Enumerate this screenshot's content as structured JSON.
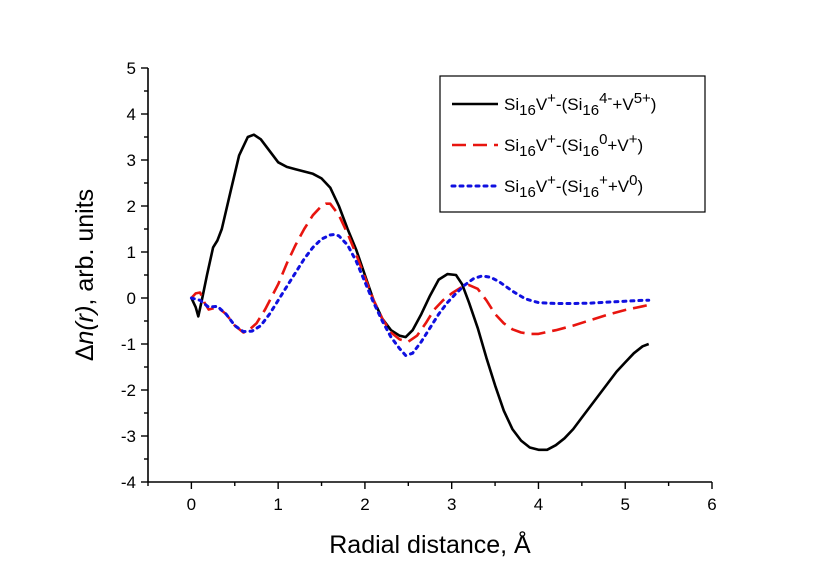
{
  "chart_data": {
    "type": "line",
    "title": "",
    "xlabel": "Radial distance, Å",
    "ylabel": {
      "prefix": "Δ",
      "italic": "n(r)",
      "suffix": ", arb. units"
    },
    "xlim": [
      -0.5,
      6
    ],
    "ylim": [
      -4,
      5
    ],
    "xticks": [
      0,
      1,
      2,
      3,
      4,
      5,
      6
    ],
    "yticks": [
      -4,
      -3,
      -2,
      -1,
      0,
      1,
      2,
      3,
      4,
      5
    ],
    "grid": false,
    "legend_position": "top-right",
    "series": [
      {
        "name": "Si16V+-(Si16^4-+V^5+)",
        "legend": [
          {
            "t": "Si"
          },
          {
            "t": "16",
            "s": "sub"
          },
          {
            "t": "V"
          },
          {
            "t": "+",
            "s": "sup"
          },
          {
            "t": "-(Si"
          },
          {
            "t": "16",
            "s": "sub"
          },
          {
            "t": "4-",
            "s": "sup"
          },
          {
            "t": "+V"
          },
          {
            "t": "5+",
            "s": "sup"
          },
          {
            "t": ")"
          }
        ],
        "color": "#000000",
        "style": "solid",
        "x": [
          0,
          0.05,
          0.08,
          0.12,
          0.18,
          0.25,
          0.3,
          0.35,
          0.45,
          0.55,
          0.65,
          0.72,
          0.8,
          0.9,
          1.0,
          1.1,
          1.2,
          1.3,
          1.4,
          1.5,
          1.6,
          1.7,
          1.8,
          1.9,
          2.0,
          2.1,
          2.2,
          2.3,
          2.4,
          2.47,
          2.55,
          2.65,
          2.75,
          2.85,
          2.95,
          3.05,
          3.12,
          3.2,
          3.3,
          3.4,
          3.5,
          3.6,
          3.7,
          3.8,
          3.9,
          4.0,
          4.1,
          4.2,
          4.3,
          4.4,
          4.5,
          4.6,
          4.7,
          4.8,
          4.9,
          5.0,
          5.1,
          5.2,
          5.27
        ],
        "values": [
          0,
          -0.2,
          -0.4,
          -0.05,
          0.5,
          1.1,
          1.25,
          1.5,
          2.3,
          3.1,
          3.5,
          3.55,
          3.45,
          3.2,
          2.95,
          2.85,
          2.8,
          2.75,
          2.7,
          2.6,
          2.4,
          2.0,
          1.5,
          1.05,
          0.5,
          -0.05,
          -0.45,
          -0.7,
          -0.82,
          -0.85,
          -0.7,
          -0.35,
          0.05,
          0.4,
          0.52,
          0.5,
          0.3,
          -0.1,
          -0.65,
          -1.3,
          -1.9,
          -2.45,
          -2.85,
          -3.1,
          -3.25,
          -3.3,
          -3.3,
          -3.2,
          -3.05,
          -2.85,
          -2.6,
          -2.35,
          -2.1,
          -1.85,
          -1.6,
          -1.4,
          -1.2,
          -1.05,
          -1.0
        ]
      },
      {
        "name": "Si16V+-(Si16^0+V^+)",
        "legend": [
          {
            "t": "Si"
          },
          {
            "t": "16",
            "s": "sub"
          },
          {
            "t": "V"
          },
          {
            "t": "+",
            "s": "sup"
          },
          {
            "t": "-(Si"
          },
          {
            "t": "16",
            "s": "sub"
          },
          {
            "t": "0",
            "s": "sup"
          },
          {
            "t": "+V"
          },
          {
            "t": "+",
            "s": "sup"
          },
          {
            "t": ")"
          }
        ],
        "color": "#e8150f",
        "style": "dashed",
        "x": [
          0,
          0.05,
          0.1,
          0.15,
          0.2,
          0.3,
          0.4,
          0.5,
          0.6,
          0.65,
          0.75,
          0.85,
          1.0,
          1.1,
          1.2,
          1.3,
          1.4,
          1.5,
          1.55,
          1.6,
          1.7,
          1.8,
          1.9,
          2.0,
          2.1,
          2.2,
          2.3,
          2.4,
          2.5,
          2.6,
          2.7,
          2.8,
          2.9,
          3.0,
          3.1,
          3.2,
          3.3,
          3.4,
          3.5,
          3.6,
          3.7,
          3.8,
          3.9,
          4.0,
          4.1,
          4.2,
          4.4,
          4.6,
          4.8,
          5.0,
          5.2,
          5.27
        ],
        "values": [
          0,
          0.1,
          0.12,
          -0.1,
          -0.25,
          -0.2,
          -0.35,
          -0.6,
          -0.75,
          -0.72,
          -0.55,
          -0.25,
          0.3,
          0.75,
          1.15,
          1.5,
          1.8,
          2.0,
          2.05,
          2.05,
          1.8,
          1.4,
          0.95,
          0.45,
          -0.05,
          -0.45,
          -0.75,
          -0.9,
          -0.95,
          -0.82,
          -0.55,
          -0.25,
          -0.05,
          0.1,
          0.22,
          0.28,
          0.2,
          -0.05,
          -0.35,
          -0.55,
          -0.68,
          -0.75,
          -0.78,
          -0.78,
          -0.74,
          -0.7,
          -0.6,
          -0.48,
          -0.36,
          -0.26,
          -0.18,
          -0.15
        ]
      },
      {
        "name": "Si16V+-(Si16^++V^0)",
        "legend": [
          {
            "t": "Si"
          },
          {
            "t": "16",
            "s": "sub"
          },
          {
            "t": "V"
          },
          {
            "t": "+",
            "s": "sup"
          },
          {
            "t": "-(Si"
          },
          {
            "t": "16",
            "s": "sub"
          },
          {
            "t": "+",
            "s": "sup"
          },
          {
            "t": "+V"
          },
          {
            "t": "0",
            "s": "sup"
          },
          {
            "t": ")"
          }
        ],
        "color": "#1010e0",
        "style": "dotted",
        "x": [
          0,
          0.1,
          0.2,
          0.3,
          0.4,
          0.5,
          0.6,
          0.7,
          0.8,
          0.9,
          1.0,
          1.1,
          1.2,
          1.3,
          1.4,
          1.5,
          1.6,
          1.65,
          1.7,
          1.8,
          1.9,
          2.0,
          2.1,
          2.2,
          2.3,
          2.4,
          2.47,
          2.55,
          2.65,
          2.75,
          2.85,
          2.95,
          3.05,
          3.15,
          3.25,
          3.35,
          3.45,
          3.55,
          3.7,
          3.85,
          4.0,
          4.2,
          4.4,
          4.6,
          4.8,
          5.0,
          5.2,
          5.27
        ],
        "values": [
          0,
          -0.05,
          -0.2,
          -0.18,
          -0.35,
          -0.6,
          -0.73,
          -0.72,
          -0.6,
          -0.35,
          -0.05,
          0.25,
          0.55,
          0.85,
          1.1,
          1.28,
          1.37,
          1.38,
          1.35,
          1.15,
          0.8,
          0.35,
          -0.1,
          -0.5,
          -0.85,
          -1.1,
          -1.25,
          -1.2,
          -0.95,
          -0.65,
          -0.35,
          -0.1,
          0.1,
          0.28,
          0.42,
          0.48,
          0.45,
          0.35,
          0.15,
          -0.02,
          -0.1,
          -0.12,
          -0.12,
          -0.11,
          -0.09,
          -0.07,
          -0.05,
          -0.05
        ]
      }
    ]
  }
}
